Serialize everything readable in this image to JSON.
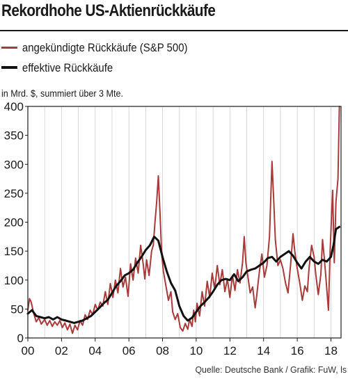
{
  "chart_data": {
    "type": "line",
    "title": "Rekordhohe US-Aktienrückkäufe",
    "ylabel": "in Mrd. $, summiert über 3 Mte.",
    "xlabel": "",
    "xlim": [
      2000,
      2018.6
    ],
    "ylim": [
      0,
      400
    ],
    "x_ticks": [
      {
        "value": 2000,
        "label": "00"
      },
      {
        "value": 2002,
        "label": "02"
      },
      {
        "value": 2004,
        "label": "04"
      },
      {
        "value": 2006,
        "label": "06"
      },
      {
        "value": 2008,
        "label": "08"
      },
      {
        "value": 2010,
        "label": "10"
      },
      {
        "value": 2012,
        "label": "12"
      },
      {
        "value": 2014,
        "label": "14"
      },
      {
        "value": 2016,
        "label": "16"
      },
      {
        "value": 2018,
        "label": "18"
      }
    ],
    "y_ticks": [
      0,
      50,
      100,
      150,
      200,
      250,
      300,
      350,
      400
    ],
    "grid": "x-years",
    "legend_position": "top-left",
    "series": [
      {
        "name": "angekündigte Rückkäufe (S&P 500)",
        "color": "#a83a3a",
        "line_width": 2,
        "points": [
          [
            2000.0,
            48
          ],
          [
            2000.1,
            68
          ],
          [
            2000.2,
            62
          ],
          [
            2000.35,
            42
          ],
          [
            2000.5,
            28
          ],
          [
            2000.65,
            35
          ],
          [
            2000.8,
            24
          ],
          [
            2001.0,
            32
          ],
          [
            2001.15,
            22
          ],
          [
            2001.3,
            30
          ],
          [
            2001.45,
            20
          ],
          [
            2001.6,
            28
          ],
          [
            2001.75,
            22
          ],
          [
            2001.9,
            30
          ],
          [
            2002.05,
            18
          ],
          [
            2002.2,
            26
          ],
          [
            2002.35,
            14
          ],
          [
            2002.5,
            24
          ],
          [
            2002.65,
            8
          ],
          [
            2002.8,
            22
          ],
          [
            2002.95,
            14
          ],
          [
            2003.1,
            30
          ],
          [
            2003.25,
            22
          ],
          [
            2003.4,
            40
          ],
          [
            2003.55,
            32
          ],
          [
            2003.7,
            48
          ],
          [
            2003.85,
            40
          ],
          [
            2004.0,
            58
          ],
          [
            2004.15,
            48
          ],
          [
            2004.3,
            62
          ],
          [
            2004.45,
            55
          ],
          [
            2004.6,
            80
          ],
          [
            2004.75,
            58
          ],
          [
            2004.9,
            94
          ],
          [
            2005.05,
            70
          ],
          [
            2005.2,
            100
          ],
          [
            2005.35,
            78
          ],
          [
            2005.5,
            120
          ],
          [
            2005.65,
            88
          ],
          [
            2005.8,
            105
          ],
          [
            2005.95,
            72
          ],
          [
            2006.1,
            128
          ],
          [
            2006.25,
            100
          ],
          [
            2006.4,
            138
          ],
          [
            2006.55,
            112
          ],
          [
            2006.7,
            160
          ],
          [
            2006.85,
            128
          ],
          [
            2006.95,
            102
          ],
          [
            2007.05,
            135
          ],
          [
            2007.2,
            108
          ],
          [
            2007.35,
            150
          ],
          [
            2007.45,
            160
          ],
          [
            2007.55,
            200
          ],
          [
            2007.65,
            235
          ],
          [
            2007.75,
            280
          ],
          [
            2007.85,
            215
          ],
          [
            2007.95,
            145
          ],
          [
            2008.05,
            115
          ],
          [
            2008.2,
            90
          ],
          [
            2008.35,
            65
          ],
          [
            2008.5,
            80
          ],
          [
            2008.6,
            45
          ],
          [
            2008.75,
            32
          ],
          [
            2008.9,
            42
          ],
          [
            2009.05,
            18
          ],
          [
            2009.2,
            12
          ],
          [
            2009.35,
            25
          ],
          [
            2009.5,
            15
          ],
          [
            2009.6,
            32
          ],
          [
            2009.75,
            20
          ],
          [
            2009.85,
            48
          ],
          [
            2009.95,
            28
          ],
          [
            2010.05,
            60
          ],
          [
            2010.2,
            38
          ],
          [
            2010.35,
            80
          ],
          [
            2010.5,
            55
          ],
          [
            2010.65,
            98
          ],
          [
            2010.8,
            70
          ],
          [
            2010.95,
            112
          ],
          [
            2011.1,
            85
          ],
          [
            2011.25,
            125
          ],
          [
            2011.4,
            92
          ],
          [
            2011.55,
            118
          ],
          [
            2011.7,
            80
          ],
          [
            2011.85,
            102
          ],
          [
            2012.0,
            70
          ],
          [
            2012.15,
            108
          ],
          [
            2012.3,
            82
          ],
          [
            2012.45,
            118
          ],
          [
            2012.6,
            95
          ],
          [
            2012.75,
            130
          ],
          [
            2012.85,
            175
          ],
          [
            2012.95,
            130
          ],
          [
            2013.1,
            100
          ],
          [
            2013.2,
            78
          ],
          [
            2013.35,
            88
          ],
          [
            2013.5,
            52
          ],
          [
            2013.6,
            75
          ],
          [
            2013.75,
            115
          ],
          [
            2013.9,
            145
          ],
          [
            2014.05,
            105
          ],
          [
            2014.2,
            125
          ],
          [
            2014.35,
            175
          ],
          [
            2014.5,
            305
          ],
          [
            2014.6,
            240
          ],
          [
            2014.7,
            170
          ],
          [
            2014.85,
            125
          ],
          [
            2015.0,
            135
          ],
          [
            2015.15,
            120
          ],
          [
            2015.3,
            95
          ],
          [
            2015.45,
            78
          ],
          [
            2015.6,
            125
          ],
          [
            2015.75,
            180
          ],
          [
            2015.85,
            150
          ],
          [
            2016.0,
            120
          ],
          [
            2016.15,
            95
          ],
          [
            2016.3,
            65
          ],
          [
            2016.45,
            90
          ],
          [
            2016.6,
            80
          ],
          [
            2016.7,
            120
          ],
          [
            2016.85,
            160
          ],
          [
            2017.0,
            140
          ],
          [
            2017.1,
            110
          ],
          [
            2017.25,
            75
          ],
          [
            2017.4,
            110
          ],
          [
            2017.5,
            170
          ],
          [
            2017.6,
            140
          ],
          [
            2017.7,
            105
          ],
          [
            2017.85,
            48
          ],
          [
            2017.95,
            150
          ],
          [
            2018.1,
            255
          ],
          [
            2018.2,
            130
          ],
          [
            2018.3,
            235
          ],
          [
            2018.42,
            275
          ],
          [
            2018.5,
            400
          ]
        ]
      },
      {
        "name": "effektive Rückkäufe",
        "color": "#111111",
        "line_width": 3,
        "points": [
          [
            2000.0,
            42
          ],
          [
            2000.25,
            48
          ],
          [
            2000.5,
            38
          ],
          [
            2000.75,
            36
          ],
          [
            2001.0,
            34
          ],
          [
            2001.25,
            36
          ],
          [
            2001.5,
            32
          ],
          [
            2001.75,
            36
          ],
          [
            2002.0,
            32
          ],
          [
            2002.25,
            30
          ],
          [
            2002.5,
            28
          ],
          [
            2002.75,
            26
          ],
          [
            2003.0,
            28
          ],
          [
            2003.25,
            30
          ],
          [
            2003.5,
            34
          ],
          [
            2003.75,
            38
          ],
          [
            2004.0,
            45
          ],
          [
            2004.25,
            52
          ],
          [
            2004.5,
            60
          ],
          [
            2004.75,
            66
          ],
          [
            2005.0,
            78
          ],
          [
            2005.25,
            90
          ],
          [
            2005.5,
            98
          ],
          [
            2005.75,
            108
          ],
          [
            2006.0,
            112
          ],
          [
            2006.25,
            118
          ],
          [
            2006.5,
            130
          ],
          [
            2006.75,
            140
          ],
          [
            2007.0,
            152
          ],
          [
            2007.25,
            160
          ],
          [
            2007.5,
            175
          ],
          [
            2007.75,
            168
          ],
          [
            2008.0,
            140
          ],
          [
            2008.25,
            115
          ],
          [
            2008.5,
            95
          ],
          [
            2008.75,
            82
          ],
          [
            2009.0,
            55
          ],
          [
            2009.25,
            38
          ],
          [
            2009.5,
            30
          ],
          [
            2009.75,
            35
          ],
          [
            2010.0,
            45
          ],
          [
            2010.25,
            55
          ],
          [
            2010.5,
            62
          ],
          [
            2010.75,
            70
          ],
          [
            2011.0,
            80
          ],
          [
            2011.25,
            92
          ],
          [
            2011.5,
            100
          ],
          [
            2011.75,
            102
          ],
          [
            2012.0,
            100
          ],
          [
            2012.25,
            110
          ],
          [
            2012.5,
            98
          ],
          [
            2012.75,
            105
          ],
          [
            2013.0,
            115
          ],
          [
            2013.25,
            118
          ],
          [
            2013.5,
            120
          ],
          [
            2013.75,
            125
          ],
          [
            2014.0,
            130
          ],
          [
            2014.25,
            138
          ],
          [
            2014.5,
            140
          ],
          [
            2014.75,
            132
          ],
          [
            2015.0,
            140
          ],
          [
            2015.25,
            145
          ],
          [
            2015.5,
            150
          ],
          [
            2015.75,
            142
          ],
          [
            2016.0,
            130
          ],
          [
            2016.25,
            120
          ],
          [
            2016.5,
            132
          ],
          [
            2016.75,
            140
          ],
          [
            2017.0,
            132
          ],
          [
            2017.25,
            128
          ],
          [
            2017.5,
            135
          ],
          [
            2017.75,
            132
          ],
          [
            2018.0,
            140
          ],
          [
            2018.15,
            160
          ],
          [
            2018.3,
            188
          ],
          [
            2018.5,
            192
          ]
        ]
      }
    ],
    "source": "Quelle: Deutsche Bank / Grafik: FuW, ls"
  }
}
